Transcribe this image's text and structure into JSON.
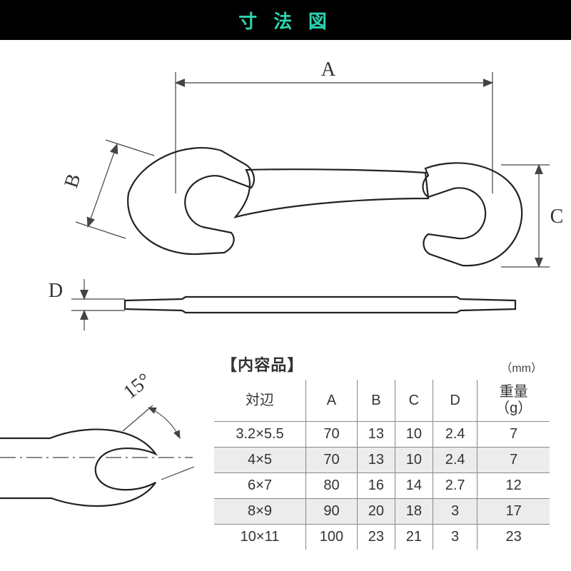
{
  "header": {
    "title": "寸 法 図",
    "bg": "#000000",
    "fg": "#2bd6b0"
  },
  "diagram": {
    "labels": {
      "A": "A",
      "B": "B",
      "C": "C",
      "D": "D"
    },
    "angle_label": "15°",
    "line_color": "#444444",
    "outline_color": "#222222",
    "fill_color": "#ffffff"
  },
  "table": {
    "title": "【内容品】",
    "unit": "（mm）",
    "columns": [
      "対辺",
      "A",
      "B",
      "C",
      "D",
      "重量\n（g）"
    ],
    "rows": [
      [
        "3.2×5.5",
        "70",
        "13",
        "10",
        "2.4",
        "7"
      ],
      [
        "4×5",
        "70",
        "13",
        "10",
        "2.4",
        "7"
      ],
      [
        "6×7",
        "80",
        "16",
        "14",
        "2.7",
        "12"
      ],
      [
        "8×9",
        "90",
        "20",
        "18",
        "3",
        "17"
      ],
      [
        "10×11",
        "100",
        "23",
        "21",
        "3",
        "23"
      ]
    ],
    "alt_row_bg": "#ececec",
    "border_color": "#888888"
  }
}
